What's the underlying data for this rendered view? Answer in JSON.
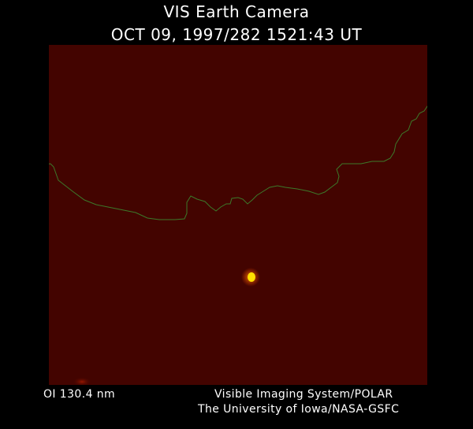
{
  "header": {
    "title": "VIS Earth Camera",
    "timestamp": "OCT 09, 1997/282 1521:43 UT"
  },
  "image": {
    "background_color": "#430400",
    "limb_line_color": "#3c7a2a",
    "bright_spot_color": "#ffe000",
    "bright_spot_glow_color": "#ff6a00"
  },
  "footer": {
    "filter": "OI  130.4 nm",
    "instrument": "Visible Imaging System/POLAR",
    "affiliation": "The University of Iowa/NASA-GSFC"
  }
}
